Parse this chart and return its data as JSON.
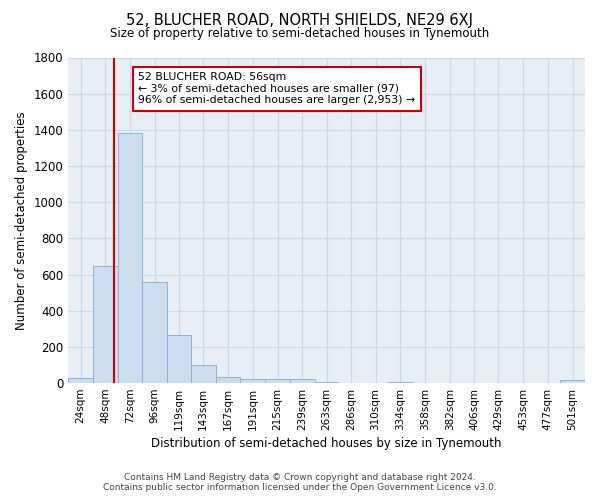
{
  "title": "52, BLUCHER ROAD, NORTH SHIELDS, NE29 6XJ",
  "subtitle": "Size of property relative to semi-detached houses in Tynemouth",
  "xlabel": "Distribution of semi-detached houses by size in Tynemouth",
  "ylabel": "Number of semi-detached properties",
  "footer_line1": "Contains HM Land Registry data © Crown copyright and database right 2024.",
  "footer_line2": "Contains public sector information licensed under the Open Government Licence v3.0.",
  "bar_color": "#ccddf0",
  "bar_edge_color": "#8ab4d8",
  "grid_color": "#c8d8e8",
  "plot_bg_color": "#e8eef5",
  "fig_bg_color": "#ffffff",
  "annotation_box_color": "#ffffff",
  "annotation_border_color": "#cc0000",
  "vline_color": "#cc0000",
  "categories": [
    "24sqm",
    "48sqm",
    "72sqm",
    "96sqm",
    "119sqm",
    "143sqm",
    "167sqm",
    "191sqm",
    "215sqm",
    "239sqm",
    "263sqm",
    "286sqm",
    "310sqm",
    "334sqm",
    "358sqm",
    "382sqm",
    "406sqm",
    "429sqm",
    "453sqm",
    "477sqm",
    "501sqm"
  ],
  "bin_edges": [
    12,
    36,
    60,
    84,
    108,
    131,
    155,
    179,
    203,
    227,
    251,
    274,
    298,
    322,
    346,
    370,
    394,
    417,
    441,
    465,
    489,
    513
  ],
  "values": [
    30,
    650,
    1380,
    560,
    265,
    100,
    35,
    25,
    20,
    20,
    5,
    0,
    0,
    5,
    0,
    0,
    0,
    0,
    0,
    0,
    15
  ],
  "ylim": [
    0,
    1800
  ],
  "yticks": [
    0,
    200,
    400,
    600,
    800,
    1000,
    1200,
    1400,
    1600,
    1800
  ],
  "property_size": 56,
  "property_label": "52 BLUCHER ROAD: 56sqm",
  "pct_smaller": 3,
  "pct_smaller_count": 97,
  "pct_larger": 96,
  "pct_larger_count": 2953
}
